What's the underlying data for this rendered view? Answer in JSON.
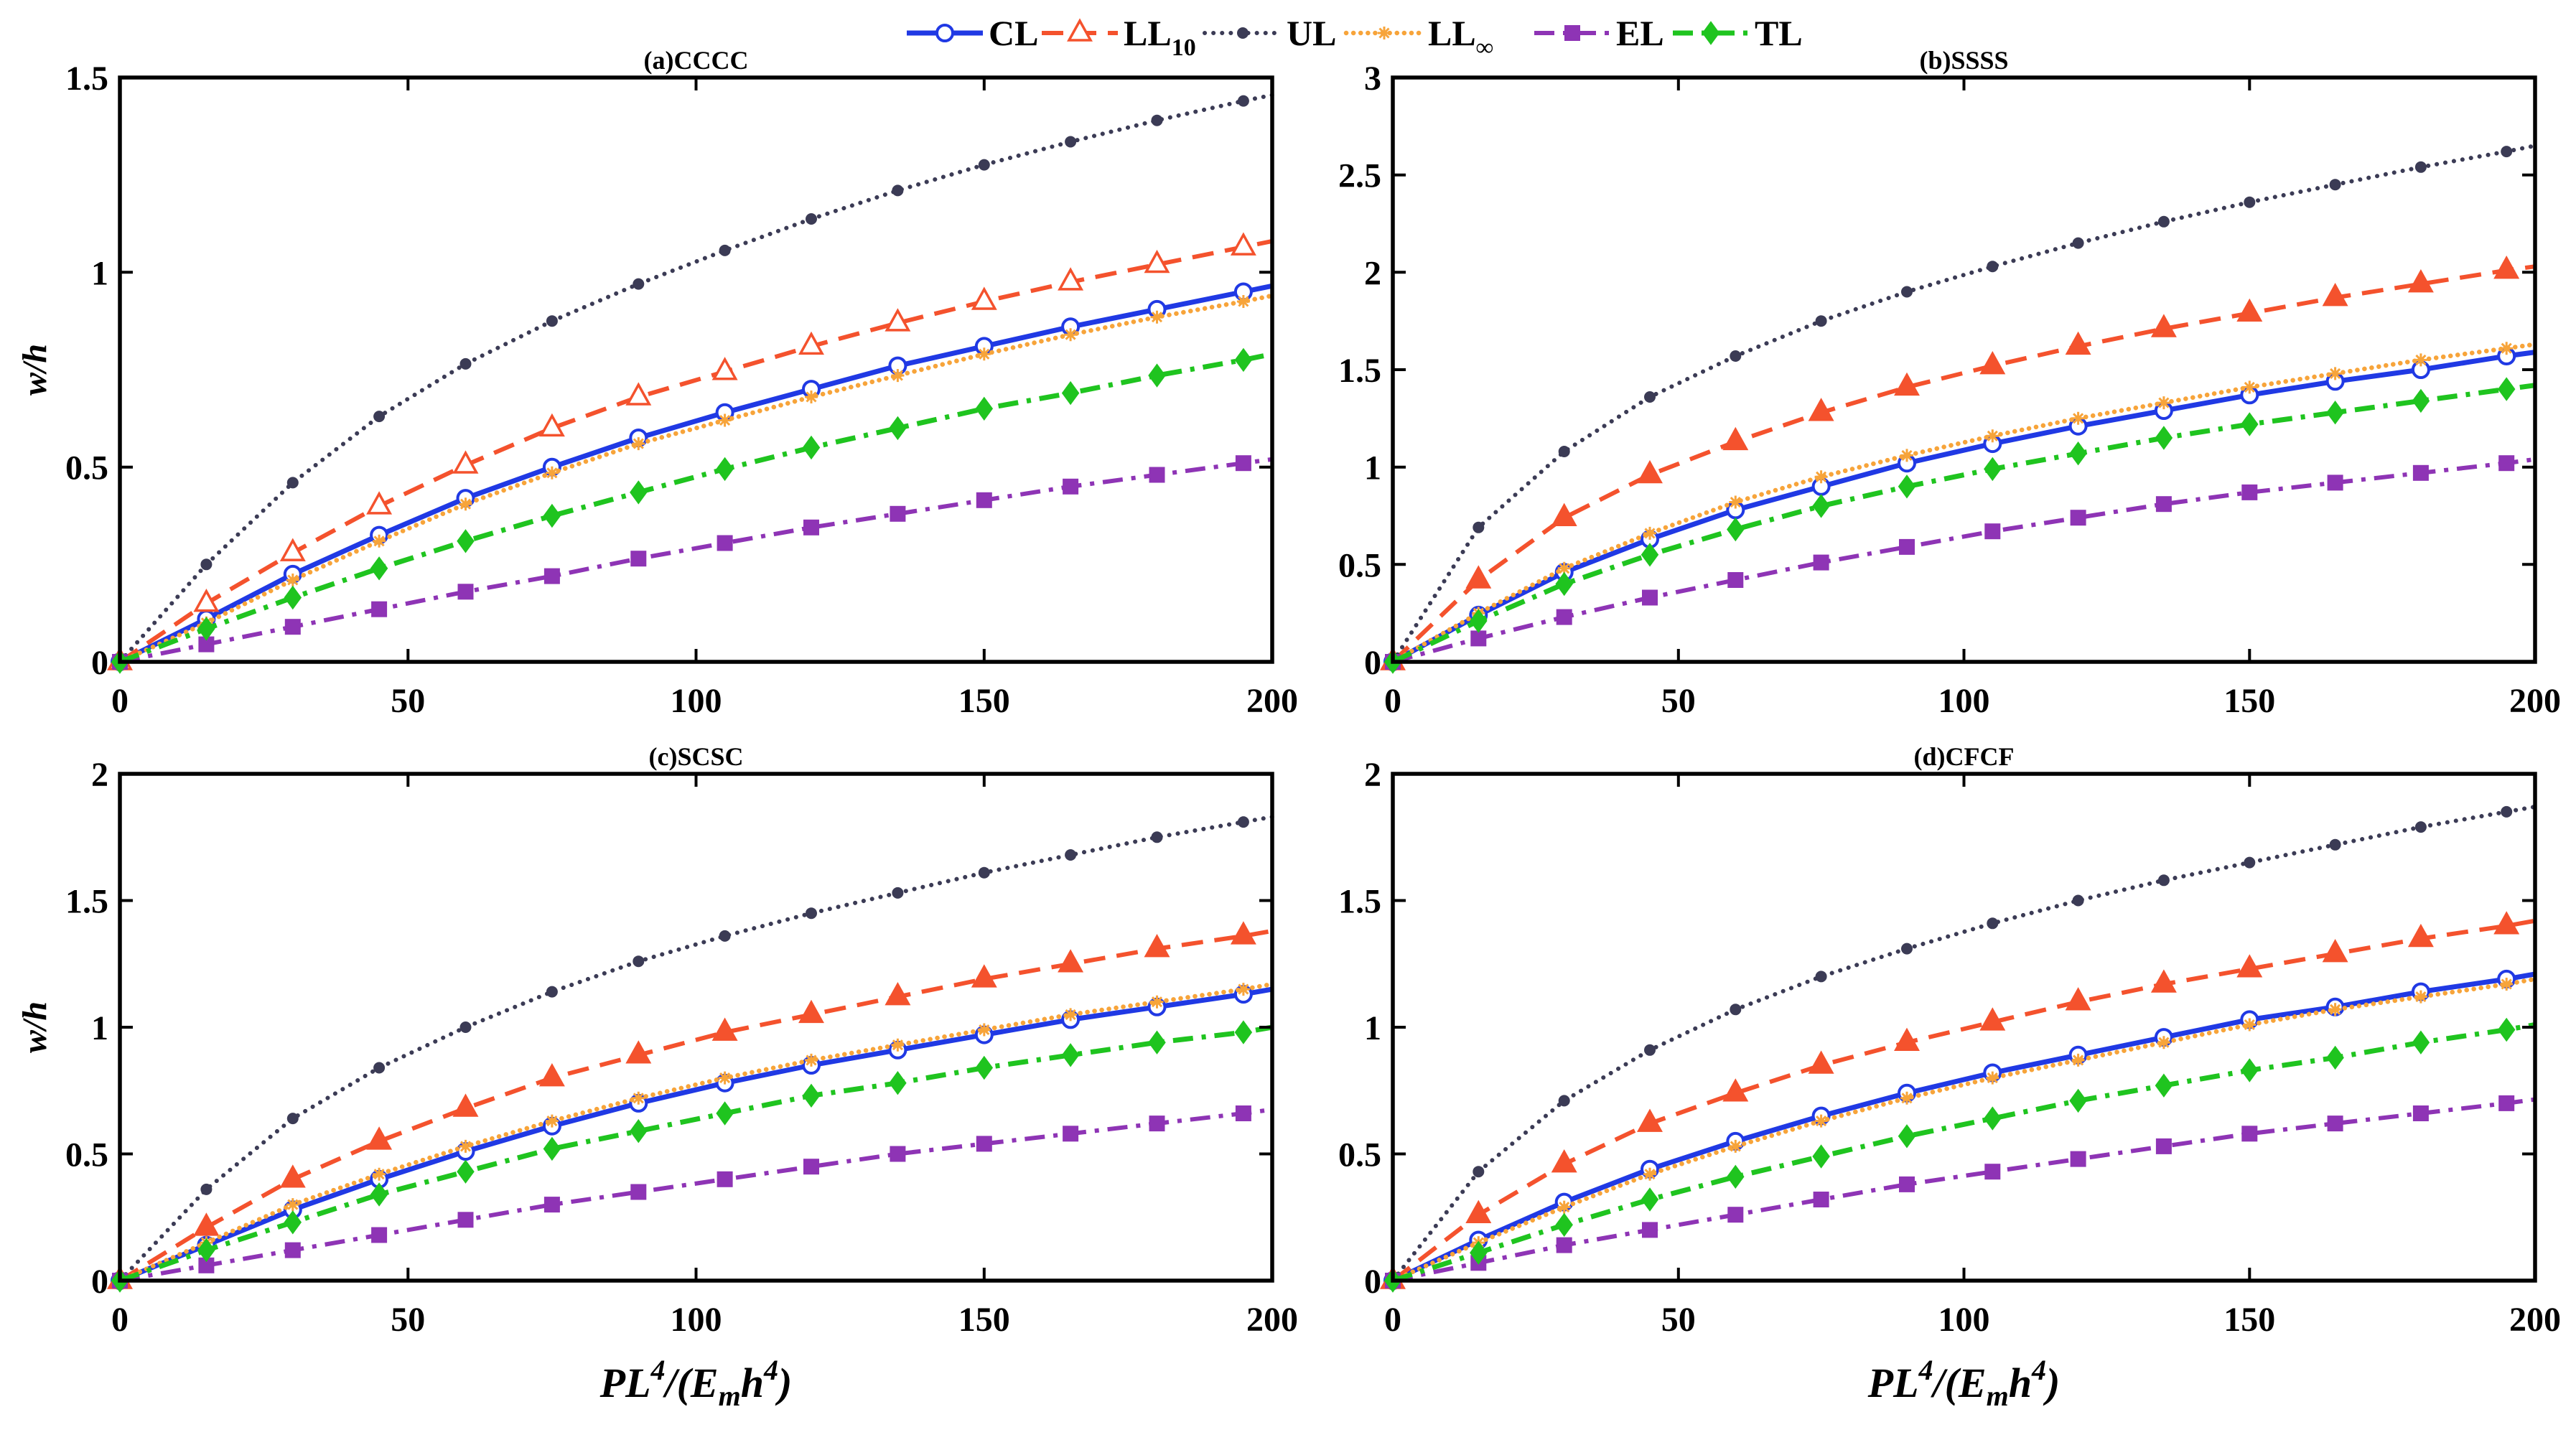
{
  "chart_data": [
    {
      "type": "line",
      "title": "(a)CCCC",
      "xlabel": [],
      "ylabel": "w/h",
      "xlim": [
        0,
        200
      ],
      "ylim": [
        0,
        1.5
      ],
      "xticks": [
        0,
        50,
        100,
        150,
        200
      ],
      "yticks": [
        0,
        0.5,
        1,
        1.5
      ],
      "x": [
        0,
        15,
        30,
        45,
        60,
        75,
        90,
        105,
        120,
        135,
        150,
        165,
        180,
        195,
        200
      ],
      "series": [
        {
          "name": "CL",
          "sub": "",
          "color": "#2039e4",
          "filled": false,
          "values": [
            0,
            0.11,
            0.225,
            0.325,
            0.42,
            0.5,
            0.575,
            0.64,
            0.7,
            0.76,
            0.81,
            0.86,
            0.905,
            0.95,
            0.965
          ]
        },
        {
          "name": "LL",
          "sub": "10",
          "color": "#f4522d",
          "filled": false,
          "values": [
            0,
            0.15,
            0.28,
            0.4,
            0.505,
            0.6,
            0.68,
            0.745,
            0.81,
            0.87,
            0.925,
            0.975,
            1.02,
            1.065,
            1.08
          ]
        },
        {
          "name": "UL",
          "sub": "",
          "color": "#3b3b55",
          "filled": true,
          "values": [
            0,
            0.25,
            0.46,
            0.63,
            0.765,
            0.875,
            0.97,
            1.056,
            1.137,
            1.21,
            1.276,
            1.335,
            1.39,
            1.44,
            1.455
          ]
        },
        {
          "name": "LL",
          "sub": "∞",
          "color": "#f7a43a",
          "filled": true,
          "values": [
            0,
            0.1,
            0.21,
            0.31,
            0.405,
            0.485,
            0.56,
            0.62,
            0.68,
            0.735,
            0.79,
            0.84,
            0.885,
            0.925,
            0.94
          ]
        },
        {
          "name": "EL",
          "sub": "",
          "color": "#8e34b5",
          "filled": true,
          "values": [
            0,
            0.045,
            0.09,
            0.135,
            0.18,
            0.22,
            0.265,
            0.305,
            0.345,
            0.38,
            0.415,
            0.45,
            0.48,
            0.51,
            0.52
          ]
        },
        {
          "name": "TL",
          "sub": "",
          "color": "#1fc41f",
          "filled": true,
          "values": [
            0,
            0.085,
            0.165,
            0.24,
            0.31,
            0.375,
            0.435,
            0.495,
            0.55,
            0.6,
            0.65,
            0.69,
            0.735,
            0.775,
            0.79
          ]
        }
      ]
    },
    {
      "type": "line",
      "title": "(b)SSSS",
      "xlabel": [],
      "ylabel": "",
      "xlim": [
        0,
        200
      ],
      "ylim": [
        0,
        3
      ],
      "xticks": [
        0,
        50,
        100,
        150,
        200
      ],
      "yticks": [
        0,
        0.5,
        1,
        1.5,
        2,
        2.5,
        3
      ],
      "x": [
        0,
        15,
        30,
        45,
        60,
        75,
        90,
        105,
        120,
        135,
        150,
        165,
        180,
        195,
        200
      ],
      "series": [
        {
          "name": "CL",
          "sub": "",
          "color": "#2039e4",
          "filled": false,
          "values": [
            0,
            0.24,
            0.46,
            0.63,
            0.78,
            0.9,
            1.02,
            1.12,
            1.21,
            1.29,
            1.37,
            1.44,
            1.5,
            1.57,
            1.59
          ]
        },
        {
          "name": "LL",
          "sub": "10",
          "color": "#f4522d",
          "filled": true,
          "values": [
            0,
            0.42,
            0.74,
            0.96,
            1.13,
            1.28,
            1.41,
            1.52,
            1.62,
            1.71,
            1.79,
            1.87,
            1.94,
            2.01,
            2.03
          ]
        },
        {
          "name": "UL",
          "sub": "",
          "color": "#3b3b55",
          "filled": true,
          "values": [
            0,
            0.69,
            1.08,
            1.36,
            1.57,
            1.75,
            1.9,
            2.03,
            2.15,
            2.26,
            2.36,
            2.45,
            2.54,
            2.62,
            2.65
          ]
        },
        {
          "name": "LL",
          "sub": "∞",
          "color": "#f7a43a",
          "filled": true,
          "values": [
            0,
            0.25,
            0.48,
            0.66,
            0.82,
            0.95,
            1.06,
            1.16,
            1.25,
            1.33,
            1.41,
            1.48,
            1.55,
            1.61,
            1.63
          ]
        },
        {
          "name": "EL",
          "sub": "",
          "color": "#8e34b5",
          "filled": true,
          "values": [
            0,
            0.12,
            0.23,
            0.33,
            0.42,
            0.51,
            0.59,
            0.67,
            0.74,
            0.81,
            0.87,
            0.92,
            0.97,
            1.02,
            1.04
          ]
        },
        {
          "name": "TL",
          "sub": "",
          "color": "#1fc41f",
          "filled": true,
          "values": [
            0,
            0.21,
            0.4,
            0.55,
            0.68,
            0.8,
            0.9,
            0.99,
            1.07,
            1.15,
            1.22,
            1.28,
            1.34,
            1.4,
            1.42
          ]
        }
      ]
    },
    {
      "type": "line",
      "title": "(c)SCSC",
      "xlabel": [
        {
          "t": "PL"
        },
        {
          "t": "4",
          "sup": true
        },
        {
          "t": "/(E"
        },
        {
          "t": "m",
          "sub": true
        },
        {
          "t": "h"
        },
        {
          "t": "4",
          "sup": true
        },
        {
          "t": ")"
        }
      ],
      "ylabel": "w/h",
      "xlim": [
        0,
        200
      ],
      "ylim": [
        0,
        2
      ],
      "xticks": [
        0,
        50,
        100,
        150,
        200
      ],
      "yticks": [
        0,
        0.5,
        1,
        1.5,
        2
      ],
      "x": [
        0,
        15,
        30,
        45,
        60,
        75,
        90,
        105,
        120,
        135,
        150,
        165,
        180,
        195,
        200
      ],
      "series": [
        {
          "name": "CL",
          "sub": "",
          "color": "#2039e4",
          "filled": false,
          "values": [
            0,
            0.14,
            0.28,
            0.4,
            0.51,
            0.61,
            0.7,
            0.78,
            0.85,
            0.91,
            0.97,
            1.03,
            1.08,
            1.13,
            1.15
          ]
        },
        {
          "name": "LL",
          "sub": "10",
          "color": "#f4522d",
          "filled": true,
          "values": [
            0,
            0.21,
            0.4,
            0.55,
            0.68,
            0.8,
            0.89,
            0.98,
            1.05,
            1.12,
            1.19,
            1.25,
            1.31,
            1.36,
            1.38
          ]
        },
        {
          "name": "UL",
          "sub": "",
          "color": "#3b3b55",
          "filled": true,
          "values": [
            0,
            0.36,
            0.64,
            0.84,
            1.0,
            1.14,
            1.26,
            1.36,
            1.45,
            1.53,
            1.61,
            1.68,
            1.75,
            1.81,
            1.83
          ]
        },
        {
          "name": "LL",
          "sub": "∞",
          "color": "#f7a43a",
          "filled": true,
          "values": [
            0,
            0.15,
            0.3,
            0.42,
            0.53,
            0.63,
            0.72,
            0.8,
            0.87,
            0.93,
            0.99,
            1.05,
            1.1,
            1.15,
            1.17
          ]
        },
        {
          "name": "EL",
          "sub": "",
          "color": "#8e34b5",
          "filled": true,
          "values": [
            0,
            0.06,
            0.12,
            0.18,
            0.24,
            0.3,
            0.35,
            0.4,
            0.45,
            0.5,
            0.54,
            0.58,
            0.62,
            0.66,
            0.675
          ]
        },
        {
          "name": "TL",
          "sub": "",
          "color": "#1fc41f",
          "filled": true,
          "values": [
            0,
            0.12,
            0.23,
            0.34,
            0.43,
            0.52,
            0.59,
            0.66,
            0.73,
            0.78,
            0.84,
            0.89,
            0.94,
            0.98,
            1.0
          ]
        }
      ]
    },
    {
      "type": "line",
      "title": "(d)CFCF",
      "xlabel": [
        {
          "t": "PL"
        },
        {
          "t": "4",
          "sup": true
        },
        {
          "t": "/(E"
        },
        {
          "t": "m",
          "sub": true
        },
        {
          "t": "h"
        },
        {
          "t": "4",
          "sup": true
        },
        {
          "t": ")"
        }
      ],
      "ylabel": "",
      "xlim": [
        0,
        200
      ],
      "ylim": [
        0,
        2
      ],
      "xticks": [
        0,
        50,
        100,
        150,
        200
      ],
      "yticks": [
        0,
        0.5,
        1,
        1.5,
        2
      ],
      "x": [
        0,
        15,
        30,
        45,
        60,
        75,
        90,
        105,
        120,
        135,
        150,
        165,
        180,
        195,
        200
      ],
      "series": [
        {
          "name": "CL",
          "sub": "",
          "color": "#2039e4",
          "filled": false,
          "values": [
            0,
            0.16,
            0.31,
            0.44,
            0.55,
            0.65,
            0.74,
            0.82,
            0.89,
            0.96,
            1.03,
            1.08,
            1.14,
            1.19,
            1.21
          ]
        },
        {
          "name": "LL",
          "sub": "10",
          "color": "#f4522d",
          "filled": true,
          "values": [
            0,
            0.26,
            0.46,
            0.62,
            0.74,
            0.85,
            0.94,
            1.02,
            1.1,
            1.17,
            1.23,
            1.29,
            1.35,
            1.4,
            1.42
          ]
        },
        {
          "name": "UL",
          "sub": "",
          "color": "#3b3b55",
          "filled": true,
          "values": [
            0,
            0.43,
            0.71,
            0.91,
            1.07,
            1.2,
            1.31,
            1.41,
            1.5,
            1.58,
            1.65,
            1.72,
            1.79,
            1.85,
            1.87
          ]
        },
        {
          "name": "LL",
          "sub": "∞",
          "color": "#f7a43a",
          "filled": true,
          "values": [
            0,
            0.15,
            0.29,
            0.42,
            0.53,
            0.63,
            0.72,
            0.8,
            0.87,
            0.94,
            1.01,
            1.07,
            1.12,
            1.17,
            1.19
          ]
        },
        {
          "name": "EL",
          "sub": "",
          "color": "#8e34b5",
          "filled": true,
          "values": [
            0,
            0.07,
            0.14,
            0.2,
            0.26,
            0.32,
            0.38,
            0.43,
            0.48,
            0.53,
            0.58,
            0.62,
            0.66,
            0.7,
            0.715
          ]
        },
        {
          "name": "TL",
          "sub": "",
          "color": "#1fc41f",
          "filled": true,
          "values": [
            0,
            0.11,
            0.22,
            0.32,
            0.41,
            0.49,
            0.57,
            0.64,
            0.71,
            0.77,
            0.83,
            0.88,
            0.94,
            0.99,
            1.01
          ]
        }
      ]
    }
  ]
}
